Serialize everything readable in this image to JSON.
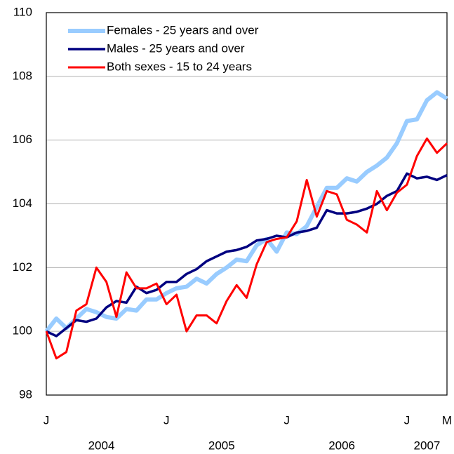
{
  "chart_data": {
    "type": "line",
    "categories": [
      "J",
      null,
      null,
      null,
      null,
      null,
      null,
      null,
      null,
      null,
      null,
      null,
      "J",
      null,
      null,
      null,
      null,
      null,
      null,
      null,
      null,
      null,
      null,
      null,
      "J",
      null,
      null,
      null,
      null,
      null,
      null,
      null,
      null,
      null,
      null,
      null,
      "J",
      null,
      null,
      null,
      "M"
    ],
    "category_groups": [
      {
        "label": "2004",
        "count": 12
      },
      {
        "label": "2005",
        "count": 12
      },
      {
        "label": "2006",
        "count": 12
      },
      {
        "label": "2007",
        "count": 5
      }
    ],
    "ylim": [
      98,
      110
    ],
    "yticks": [
      98,
      100,
      102,
      104,
      106,
      108,
      110
    ],
    "grid": true,
    "legend": "top-left",
    "series": [
      {
        "name": "Females - 25 years and over",
        "color": "#99ccff",
        "width": 6,
        "values": [
          100.0,
          100.4,
          100.1,
          100.4,
          100.7,
          100.6,
          100.45,
          100.4,
          100.7,
          100.65,
          101.0,
          101.0,
          101.2,
          101.35,
          101.4,
          101.65,
          101.5,
          101.8,
          102.0,
          102.25,
          102.2,
          102.7,
          102.9,
          102.5,
          103.1,
          103.05,
          103.3,
          103.9,
          104.5,
          104.5,
          104.8,
          104.7,
          105.0,
          105.2,
          105.45,
          105.9,
          106.6,
          106.65,
          107.25,
          107.5,
          107.3
        ]
      },
      {
        "name": "Males - 25 years and over",
        "color": "#000080",
        "width": 3.5,
        "values": [
          100.0,
          99.85,
          100.1,
          100.35,
          100.3,
          100.4,
          100.75,
          100.95,
          100.9,
          101.4,
          101.2,
          101.3,
          101.55,
          101.55,
          101.8,
          101.95,
          102.2,
          102.35,
          102.5,
          102.55,
          102.65,
          102.85,
          102.9,
          103.0,
          102.95,
          103.1,
          103.15,
          103.25,
          103.8,
          103.7,
          103.7,
          103.75,
          103.85,
          104.0,
          104.25,
          104.4,
          104.95,
          104.8,
          104.85,
          104.75,
          104.9
        ]
      },
      {
        "name": "Both sexes - 15 to 24 years",
        "color": "#ff0000",
        "width": 3,
        "values": [
          100.0,
          99.15,
          99.35,
          100.65,
          100.85,
          102.0,
          101.55,
          100.45,
          101.85,
          101.35,
          101.35,
          101.5,
          100.85,
          101.15,
          100.0,
          100.5,
          100.5,
          100.25,
          100.95,
          101.45,
          101.05,
          102.1,
          102.8,
          102.9,
          102.95,
          103.45,
          104.75,
          103.6,
          104.4,
          104.3,
          103.5,
          103.35,
          103.1,
          104.4,
          103.8,
          104.35,
          104.6,
          105.5,
          106.05,
          105.6,
          105.9
        ]
      }
    ]
  }
}
